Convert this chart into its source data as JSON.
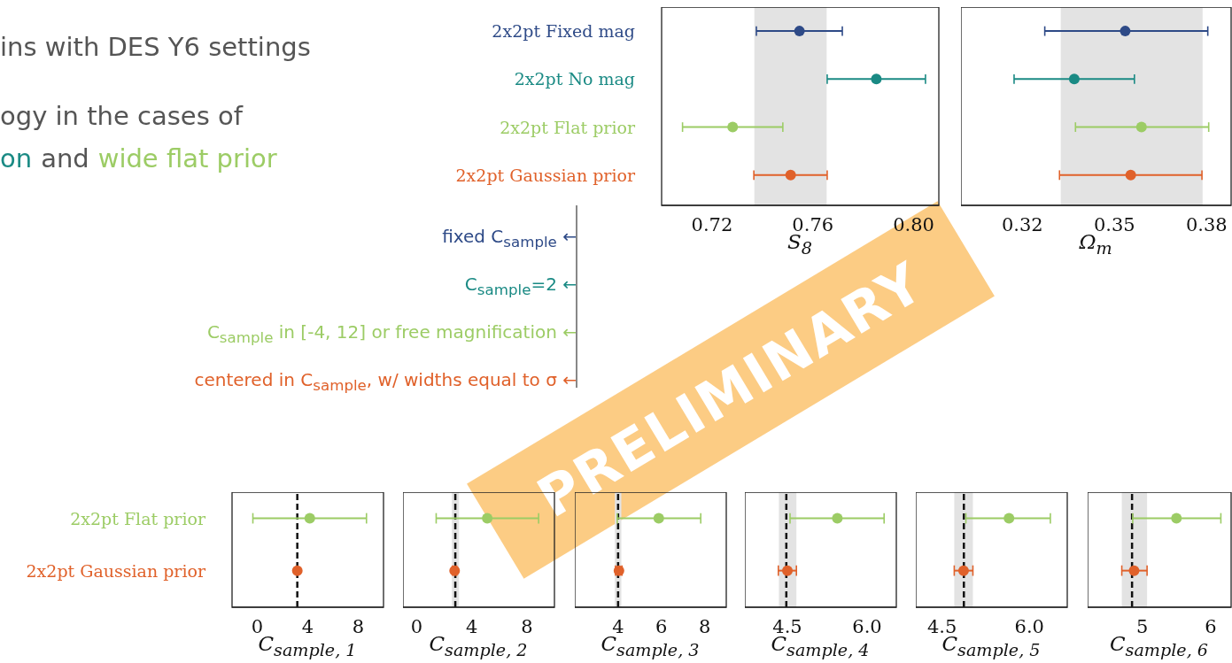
{
  "chart_data": [
    {
      "type": "scatter",
      "orientation": "horizontal",
      "categories": [
        "2x2pt Fixed mag",
        "2x2pt No mag",
        "2x2pt Flat prior",
        "2x2pt Gaussian prior"
      ],
      "values": [
        0.7547,
        0.7852,
        0.7282,
        0.7512
      ],
      "errors": [
        [
          0.7376,
          0.7717
        ],
        [
          0.7657,
          0.8047
        ],
        [
          0.7083,
          0.7481
        ],
        [
          0.7366,
          0.7657
        ]
      ],
      "colors": [
        "#2e4a87",
        "#1a8a84",
        "#9ccc65",
        "#e0612a"
      ],
      "xlim": [
        0.7,
        0.81
      ],
      "xticks": [
        {
          "value": 0.72,
          "label": "0.72"
        },
        {
          "value": 0.76,
          "label": "0.76"
        },
        {
          "value": 0.8,
          "label": "0.80"
        }
      ],
      "xlabel": "S$_{8}$",
      "bands": [
        {
          "axis": "x",
          "from": 0.7368,
          "to": 0.7655,
          "color": "#e3e3e3"
        }
      ],
      "annotations": [
        "ins with DES Y6 settings",
        "ogy in the cases of",
        "on",
        "and",
        "wide flat prior",
        "fixed C$_{sample}$ ←",
        "C$_{sample}$=2 ←",
        "C$_{sample}$ in [-4, 12] or free magnification ←",
        "centered in C$_{sample}$, w/ widths equal to σ ←",
        "PRELIMINARY"
      ]
    },
    {
      "type": "scatter",
      "orientation": "horizontal",
      "tick_labels": "x",
      "categories": [
        null,
        null,
        null,
        null
      ],
      "values": [
        0.3535,
        0.3369,
        0.3588,
        0.3553
      ],
      "errors": [
        [
          0.3273,
          0.3804
        ],
        [
          0.3173,
          0.3565
        ],
        [
          0.3373,
          0.3807
        ],
        [
          0.3321,
          0.3785
        ]
      ],
      "colors": [
        "#2e4a87",
        "#1a8a84",
        "#9ccc65",
        "#e0612a"
      ],
      "xlim": [
        0.3,
        0.388
      ],
      "xticks": [
        0.32,
        0.35,
        0.38
      ],
      "xlabel": "Ω$_{m}$",
      "bands": [
        {
          "axis": "x",
          "from": 0.3325,
          "to": 0.3787,
          "color": "#e3e3e3"
        }
      ]
    },
    {
      "type": "scatter",
      "orientation": "horizontal",
      "categories": [
        "2x2pt Flat prior",
        "2x2pt Gaussian prior"
      ],
      "values": [
        4.16,
        3.17
      ],
      "errors": [
        [
          -0.35,
          8.65
        ],
        null
      ],
      "colors": [
        "#9ccc65",
        "#e0612a"
      ],
      "xlim": [
        -2,
        10
      ],
      "xticks": [
        0,
        4,
        8
      ],
      "xlabel": "C$_{sample, 1}$",
      "ref_lines": [
        {
          "axis": "x",
          "value": 3.17,
          "color": "#111111",
          "line_style": "dashed"
        }
      ]
    },
    {
      "type": "scatter",
      "orientation": "horizontal",
      "tick_labels": "x",
      "categories": [
        null,
        null
      ],
      "values": [
        5.12,
        2.75
      ],
      "errors": [
        [
          1.41,
          8.85
        ],
        [
          2.6,
          2.9
        ]
      ],
      "colors": [
        "#9ccc65",
        "#e0612a"
      ],
      "xlim": [
        -1,
        10
      ],
      "xticks": [
        0,
        4,
        8
      ],
      "xlabel": "C$_{sample, 2}$",
      "bands": [
        {
          "axis": "x",
          "from": 2.55,
          "to": 3.07,
          "color": "#e3e3e3"
        }
      ],
      "ref_lines": [
        {
          "axis": "x",
          "value": 2.8,
          "color": "#111111",
          "line_style": "dashed"
        }
      ]
    },
    {
      "type": "scatter",
      "orientation": "horizontal",
      "tick_labels": "x",
      "categories": [
        null,
        null
      ],
      "values": [
        5.88,
        4.04
      ],
      "errors": [
        [
          3.96,
          7.82
        ],
        [
          3.88,
          4.18
        ]
      ],
      "colors": [
        "#9ccc65",
        "#e0612a"
      ],
      "xlim": [
        2,
        9
      ],
      "xticks": [
        4,
        6,
        8
      ],
      "xlabel": "C$_{sample, 3}$",
      "bands": [
        {
          "axis": "x",
          "from": 3.85,
          "to": 4.15,
          "color": "#e3e3e3"
        }
      ],
      "ref_lines": [
        {
          "axis": "x",
          "value": 4.0,
          "color": "#111111",
          "line_style": "dashed"
        }
      ]
    },
    {
      "type": "scatter",
      "orientation": "horizontal",
      "tick_labels": "x",
      "categories": [
        null,
        null
      ],
      "values": [
        5.44,
        4.5
      ],
      "errors": [
        [
          4.55,
          6.32
        ],
        [
          4.33,
          4.67
        ]
      ],
      "colors": [
        "#9ccc65",
        "#e0612a"
      ],
      "xlim": [
        3.7,
        6.55
      ],
      "xticks": [
        4.5,
        {
          "value": 6,
          "label": "6.0"
        }
      ],
      "xlabel": "C$_{sample, 4}$",
      "bands": [
        {
          "axis": "x",
          "from": 4.34,
          "to": 4.67,
          "color": "#e3e3e3"
        }
      ],
      "ref_lines": [
        {
          "axis": "x",
          "value": 4.48,
          "color": "#111111",
          "line_style": "dashed"
        }
      ]
    },
    {
      "type": "scatter",
      "orientation": "horizontal",
      "tick_labels": "x",
      "categories": [
        null,
        null
      ],
      "values": [
        5.65,
        4.87
      ],
      "errors": [
        [
          4.91,
          6.36
        ],
        [
          4.71,
          5.03
        ]
      ],
      "colors": [
        "#9ccc65",
        "#e0612a"
      ],
      "xlim": [
        4.05,
        6.65
      ],
      "xticks": [
        4.5,
        {
          "value": 6,
          "label": "6.0"
        }
      ],
      "xlabel": "C$_{sample, 5}$",
      "bands": [
        {
          "axis": "x",
          "from": 4.71,
          "to": 5.03,
          "color": "#e3e3e3"
        }
      ],
      "ref_lines": [
        {
          "axis": "x",
          "value": 4.875,
          "color": "#111111",
          "line_style": "dashed"
        }
      ]
    },
    {
      "type": "scatter",
      "orientation": "horizontal",
      "tick_labels": "x",
      "categories": [
        null,
        null
      ],
      "values": [
        5.5,
        4.88
      ],
      "errors": [
        [
          4.86,
          6.15
        ],
        [
          4.7,
          5.07
        ]
      ],
      "colors": [
        "#9ccc65",
        "#e0612a"
      ],
      "xlim": [
        4.2,
        6.3
      ],
      "xticks": [
        5,
        6
      ],
      "xlabel": "C$_{sample, 6}$",
      "bands": [
        {
          "axis": "x",
          "from": 4.7,
          "to": 5.07,
          "color": "#e3e3e3"
        }
      ],
      "ref_lines": [
        {
          "axis": "x",
          "value": 4.85,
          "color": "#111111",
          "line_style": "dashed"
        }
      ]
    }
  ]
}
